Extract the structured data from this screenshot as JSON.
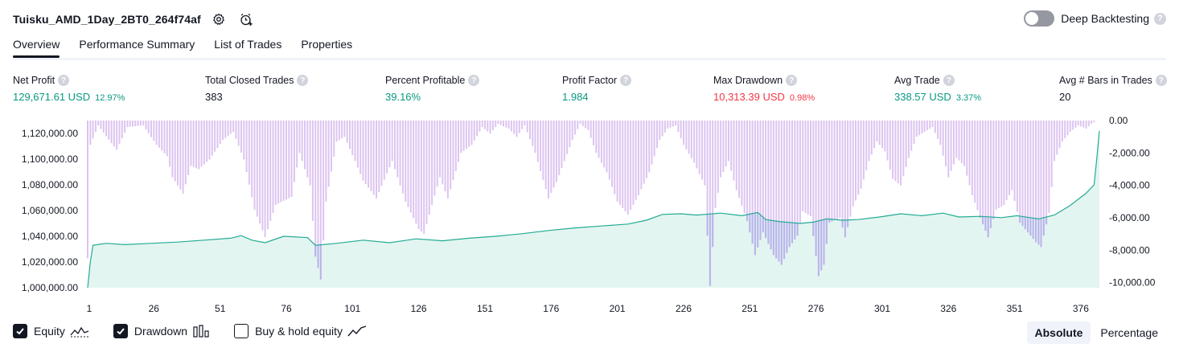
{
  "header": {
    "strategy_name": "Tuisku_AMD_1Day_2BT0_264f74af",
    "settings_icon": "gear-icon",
    "alert_icon": "alarm-plus-icon",
    "deep_backtesting_label": "Deep Backtesting",
    "deep_backtesting_enabled": false,
    "help_glyph": "?"
  },
  "tabs": [
    {
      "label": "Overview",
      "active": true
    },
    {
      "label": "Performance Summary",
      "active": false
    },
    {
      "label": "List of Trades",
      "active": false
    },
    {
      "label": "Properties",
      "active": false
    }
  ],
  "metrics": [
    {
      "label": "Net Profit",
      "value": "129,671.61 USD",
      "pct": "12.97%",
      "tone": "green"
    },
    {
      "label": "Total Closed Trades",
      "value": "383",
      "pct": "",
      "tone": "dark"
    },
    {
      "label": "Percent Profitable",
      "value": "39.16%",
      "pct": "",
      "tone": "green"
    },
    {
      "label": "Profit Factor",
      "value": "1.984",
      "pct": "",
      "tone": "green"
    },
    {
      "label": "Max Drawdown",
      "value": "10,313.39 USD",
      "pct": "0.98%",
      "tone": "red"
    },
    {
      "label": "Avg Trade",
      "value": "338.57 USD",
      "pct": "3.37%",
      "tone": "green"
    },
    {
      "label": "Avg # Bars in Trades",
      "value": "20",
      "pct": "",
      "tone": "dark"
    }
  ],
  "colors": {
    "equity_line": "#22ab94",
    "equity_fill": "#e3f5f0",
    "drawdown_bar": "#dcc4f0",
    "drawdown_overlap": "#b8b4ec",
    "positive": "#089981",
    "negative": "#f23645"
  },
  "chart_data": {
    "type": "area",
    "x_ticks": [
      "1",
      "26",
      "51",
      "76",
      "101",
      "126",
      "151",
      "176",
      "201",
      "226",
      "251",
      "276",
      "301",
      "326",
      "351",
      "376"
    ],
    "y_left_ticks": [
      "1,120,000.00",
      "1,100,000.00",
      "1,080,000.00",
      "1,060,000.00",
      "1,040,000.00",
      "1,020,000.00",
      "1,000,000.00"
    ],
    "y_right_ticks": [
      "0.00",
      "-2,000.00",
      "-4,000.00",
      "-6,000.00",
      "-8,000.00",
      "-10,000.00"
    ],
    "xlim": [
      1,
      383
    ],
    "ylim_left": [
      1000000,
      1130000
    ],
    "ylim_right": [
      -10313,
      0
    ],
    "series": [
      {
        "name": "Equity",
        "axis": "left",
        "points": [
          [
            1,
            1000000
          ],
          [
            2,
            1020000
          ],
          [
            3,
            1033000
          ],
          [
            8,
            1034500
          ],
          [
            15,
            1033500
          ],
          [
            25,
            1034500
          ],
          [
            35,
            1035500
          ],
          [
            45,
            1037000
          ],
          [
            55,
            1038500
          ],
          [
            59,
            1040500
          ],
          [
            63,
            1037000
          ],
          [
            68,
            1035000
          ],
          [
            75,
            1040000
          ],
          [
            84,
            1039000
          ],
          [
            87,
            1033000
          ],
          [
            95,
            1034500
          ],
          [
            105,
            1037000
          ],
          [
            115,
            1035000
          ],
          [
            125,
            1038000
          ],
          [
            135,
            1036500
          ],
          [
            145,
            1038500
          ],
          [
            155,
            1040000
          ],
          [
            165,
            1042000
          ],
          [
            175,
            1044500
          ],
          [
            185,
            1046500
          ],
          [
            195,
            1048000
          ],
          [
            205,
            1049500
          ],
          [
            212,
            1052500
          ],
          [
            218,
            1057000
          ],
          [
            225,
            1057500
          ],
          [
            231,
            1056500
          ],
          [
            240,
            1058000
          ],
          [
            248,
            1056000
          ],
          [
            254,
            1058500
          ],
          [
            257,
            1053000
          ],
          [
            262,
            1051500
          ],
          [
            270,
            1050000
          ],
          [
            275,
            1051000
          ],
          [
            280,
            1053500
          ],
          [
            286,
            1052500
          ],
          [
            292,
            1053000
          ],
          [
            300,
            1055000
          ],
          [
            308,
            1057500
          ],
          [
            316,
            1056000
          ],
          [
            324,
            1058000
          ],
          [
            330,
            1055000
          ],
          [
            338,
            1055500
          ],
          [
            346,
            1054500
          ],
          [
            352,
            1056000
          ],
          [
            360,
            1053500
          ],
          [
            366,
            1056500
          ],
          [
            372,
            1064000
          ],
          [
            378,
            1073500
          ],
          [
            381,
            1080000
          ],
          [
            382,
            1100000
          ],
          [
            383,
            1122000
          ]
        ]
      },
      {
        "name": "Drawdown",
        "axis": "right",
        "anchors": [
          [
            1,
            -8500
          ],
          [
            2,
            -1500
          ],
          [
            5,
            -300
          ],
          [
            10,
            -1400
          ],
          [
            12,
            -1800
          ],
          [
            16,
            -400
          ],
          [
            22,
            -300
          ],
          [
            27,
            -1500
          ],
          [
            31,
            -2200
          ],
          [
            33,
            -3500
          ],
          [
            37,
            -4500
          ],
          [
            40,
            -2800
          ],
          [
            43,
            -3000
          ],
          [
            47,
            -2400
          ],
          [
            52,
            -1200
          ],
          [
            56,
            -700
          ],
          [
            60,
            -2400
          ],
          [
            64,
            -5500
          ],
          [
            68,
            -7200
          ],
          [
            72,
            -5200
          ],
          [
            78,
            -4700
          ],
          [
            81,
            -2000
          ],
          [
            85,
            -4000
          ],
          [
            87,
            -8400
          ],
          [
            89,
            -9800
          ],
          [
            91,
            -5000
          ],
          [
            95,
            -1300
          ],
          [
            98,
            -1000
          ],
          [
            102,
            -2500
          ],
          [
            105,
            -3700
          ],
          [
            110,
            -4800
          ],
          [
            116,
            -2500
          ],
          [
            121,
            -5000
          ],
          [
            126,
            -6700
          ],
          [
            128,
            -7000
          ],
          [
            131,
            -5200
          ],
          [
            134,
            -3500
          ],
          [
            137,
            -4800
          ],
          [
            142,
            -2000
          ],
          [
            146,
            -1500
          ],
          [
            150,
            -400
          ],
          [
            153,
            -800
          ],
          [
            156,
            -200
          ],
          [
            160,
            -500
          ],
          [
            163,
            -1000
          ],
          [
            166,
            -300
          ],
          [
            170,
            -2000
          ],
          [
            175,
            -4800
          ],
          [
            178,
            -3800
          ],
          [
            181,
            -2500
          ],
          [
            184,
            -1200
          ],
          [
            187,
            -200
          ],
          [
            190,
            -600
          ],
          [
            193,
            -2000
          ],
          [
            197,
            -3200
          ],
          [
            201,
            -5000
          ],
          [
            205,
            -5800
          ],
          [
            209,
            -4600
          ],
          [
            213,
            -3200
          ],
          [
            217,
            -1200
          ],
          [
            220,
            -500
          ],
          [
            223,
            -300
          ],
          [
            226,
            -1500
          ],
          [
            230,
            -2600
          ],
          [
            234,
            -4000
          ],
          [
            236,
            -10200
          ],
          [
            238,
            -5400
          ],
          [
            240,
            -3500
          ],
          [
            243,
            -2500
          ],
          [
            246,
            -4300
          ],
          [
            250,
            -6200
          ],
          [
            253,
            -8300
          ],
          [
            256,
            -6900
          ],
          [
            260,
            -8300
          ],
          [
            263,
            -8900
          ],
          [
            266,
            -7800
          ],
          [
            269,
            -7100
          ],
          [
            271,
            -5600
          ],
          [
            274,
            -5900
          ],
          [
            277,
            -9600
          ],
          [
            279,
            -8900
          ],
          [
            281,
            -6300
          ],
          [
            285,
            -6000
          ],
          [
            287,
            -7200
          ],
          [
            290,
            -5300
          ],
          [
            293,
            -4200
          ],
          [
            296,
            -2500
          ],
          [
            299,
            -1300
          ],
          [
            302,
            -1900
          ],
          [
            305,
            -3600
          ],
          [
            308,
            -4000
          ],
          [
            311,
            -2300
          ],
          [
            314,
            -1000
          ],
          [
            317,
            -700
          ],
          [
            320,
            -400
          ],
          [
            323,
            -1500
          ],
          [
            326,
            -3500
          ],
          [
            329,
            -2300
          ],
          [
            332,
            -2800
          ],
          [
            335,
            -4600
          ],
          [
            338,
            -6000
          ],
          [
            341,
            -7200
          ],
          [
            344,
            -5500
          ],
          [
            347,
            -5200
          ],
          [
            350,
            -4300
          ],
          [
            353,
            -6300
          ],
          [
            356,
            -6900
          ],
          [
            359,
            -7500
          ],
          [
            361,
            -7800
          ],
          [
            364,
            -5700
          ],
          [
            366,
            -2500
          ],
          [
            369,
            -1300
          ],
          [
            372,
            -700
          ],
          [
            375,
            -300
          ],
          [
            378,
            -500
          ],
          [
            380,
            -200
          ],
          [
            382,
            0
          ],
          [
            383,
            0
          ]
        ]
      }
    ],
    "grid": false,
    "legend": "bottom-left"
  },
  "legend": {
    "items": [
      {
        "label": "Equity",
        "checked": true,
        "icon": "equity-line-icon"
      },
      {
        "label": "Drawdown",
        "checked": true,
        "icon": "drawdown-bars-icon"
      },
      {
        "label": "Buy & hold equity",
        "checked": false,
        "icon": "buy-hold-line-icon"
      }
    ]
  },
  "view_modes": [
    {
      "label": "Absolute",
      "active": true
    },
    {
      "label": "Percentage",
      "active": false
    }
  ]
}
